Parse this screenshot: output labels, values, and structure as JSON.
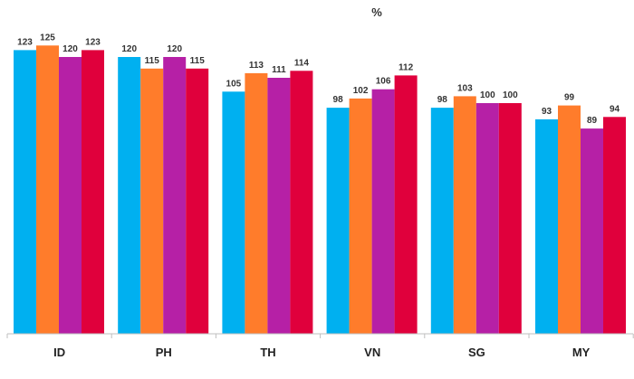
{
  "chart_data": {
    "type": "bar",
    "unit_label": "%",
    "categories": [
      "ID",
      "PH",
      "TH",
      "VN",
      "SG",
      "MY"
    ],
    "series": [
      {
        "color": "#00b0f0",
        "values": [
          123,
          120,
          105,
          98,
          98,
          93
        ]
      },
      {
        "color": "#ff7c2b",
        "values": [
          125,
          115,
          113,
          102,
          103,
          99
        ]
      },
      {
        "color": "#b620a6",
        "values": [
          120,
          120,
          111,
          106,
          100,
          89
        ]
      },
      {
        "color": "#e0003c",
        "values": [
          123,
          115,
          114,
          112,
          100,
          94
        ]
      }
    ],
    "ylim": [
      0,
      130
    ],
    "grid": false,
    "legend": "none"
  }
}
